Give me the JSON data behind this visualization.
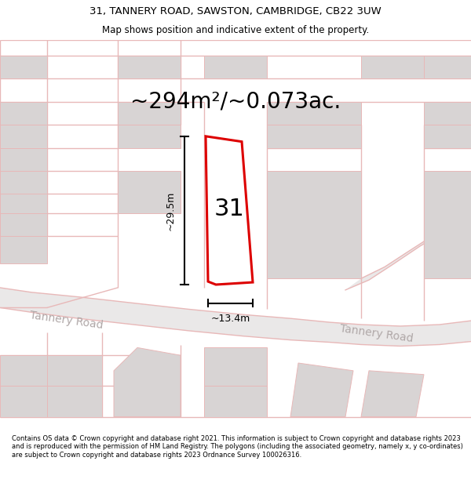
{
  "title_line1": "31, TANNERY ROAD, SAWSTON, CAMBRIDGE, CB22 3UW",
  "title_line2": "Map shows position and indicative extent of the property.",
  "area_text": "~294m²/~0.073ac.",
  "label_31": "31",
  "dim_height": "~29.5m",
  "dim_width": "~13.4m",
  "tannery_road_left": "Tannery Road",
  "tannery_road_right": "Tannery Road",
  "footer_text": "Contains OS data © Crown copyright and database right 2021. This information is subject to Crown copyright and database rights 2023 and is reproduced with the permission of HM Land Registry. The polygons (including the associated geometry, namely x, y co-ordinates) are subject to Crown copyright and database rights 2023 Ordnance Survey 100026316.",
  "map_bg": "#f7f4f4",
  "road_color": "#e8b8b8",
  "road_fill": "#e8e4e4",
  "building_color": "#d8d4d4",
  "property_outline_color": "#dd0000",
  "property_fill": "#ffffff",
  "bg_color": "#ffffff",
  "title_fontsize": 9.5,
  "subtitle_fontsize": 8.5,
  "area_fontsize": 20,
  "label_fontsize": 22,
  "dim_fontsize": 9,
  "road_label_fontsize": 10
}
